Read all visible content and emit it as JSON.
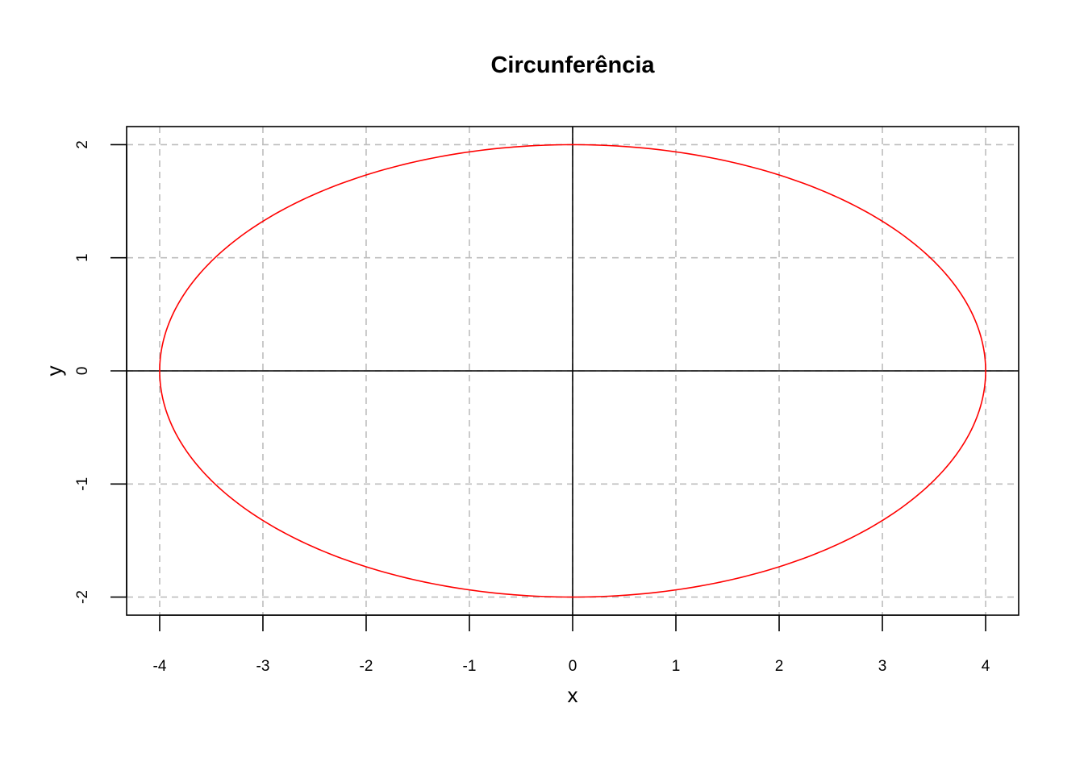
{
  "chart_data": {
    "type": "line",
    "title": "Circunferência",
    "xlabel": "x",
    "ylabel": "y",
    "xlim": [
      -4.32,
      4.32
    ],
    "ylim": [
      -2.16,
      2.16
    ],
    "x_ticks": [
      -4,
      -3,
      -2,
      -1,
      0,
      1,
      2,
      3,
      4
    ],
    "y_ticks": [
      -2,
      -1,
      0,
      1,
      2
    ],
    "grid": true,
    "reference_lines": {
      "x": 0,
      "y": 0
    },
    "series": [
      {
        "equation": "x = 4cos(t), y = 2sin(t)",
        "x": [
          4,
          3.4641,
          2,
          0,
          -2,
          -3.4641,
          -4,
          -3.4641,
          -2,
          0,
          2,
          3.4641,
          4
        ],
        "y": [
          0,
          1,
          1.7321,
          2,
          1.7321,
          1,
          0,
          -1,
          -1.7321,
          -2,
          -1.7321,
          -1,
          0
        ],
        "color": "#ff0000"
      }
    ]
  }
}
